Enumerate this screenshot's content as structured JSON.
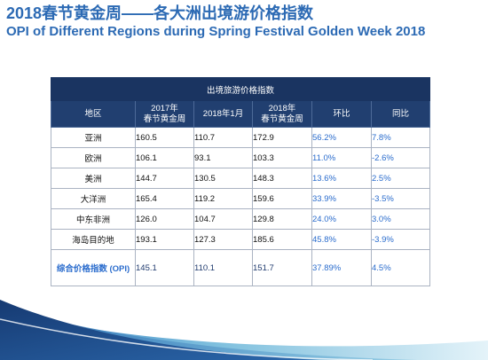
{
  "slide": {
    "title_cn": "2018春节黄金周——各大洲出境游价格指数",
    "title_en": "OPI of Different Regions during Spring Festival Golden Week 2018"
  },
  "colors": {
    "title": "#2c6ab4",
    "header_dark": "#1a3461",
    "header": "#213f70",
    "accent_text": "#2a6ccd",
    "opi_values": "#1f3a6e"
  },
  "chart_data": {
    "type": "table",
    "title": "出境旅游价格指数",
    "columns": [
      "地区",
      "2017年\n春节黄金周",
      "2018年1月",
      "2018年\n春节黄金周",
      "环比",
      "同比"
    ],
    "rows": [
      [
        "亚洲",
        "160.5",
        "110.7",
        "172.9",
        "56.2%",
        "7.8%"
      ],
      [
        "欧洲",
        "106.1",
        "93.1",
        "103.3",
        "11.0%",
        "-2.6%"
      ],
      [
        "美洲",
        "144.7",
        "130.5",
        "148.3",
        "13.6%",
        "2.5%"
      ],
      [
        "大洋洲",
        "165.4",
        "119.2",
        "159.6",
        "33.9%",
        "-3.5%"
      ],
      [
        "中东非洲",
        "126.0",
        "104.7",
        "129.8",
        "24.0%",
        "3.0%"
      ],
      [
        "海岛目的地",
        "193.1",
        "127.3",
        "185.6",
        "45.8%",
        "-3.9%"
      ],
      [
        "综合价格指数 (OPI)",
        "145.1",
        "110.1",
        "151.7",
        "37.89%",
        "4.5%"
      ]
    ]
  }
}
